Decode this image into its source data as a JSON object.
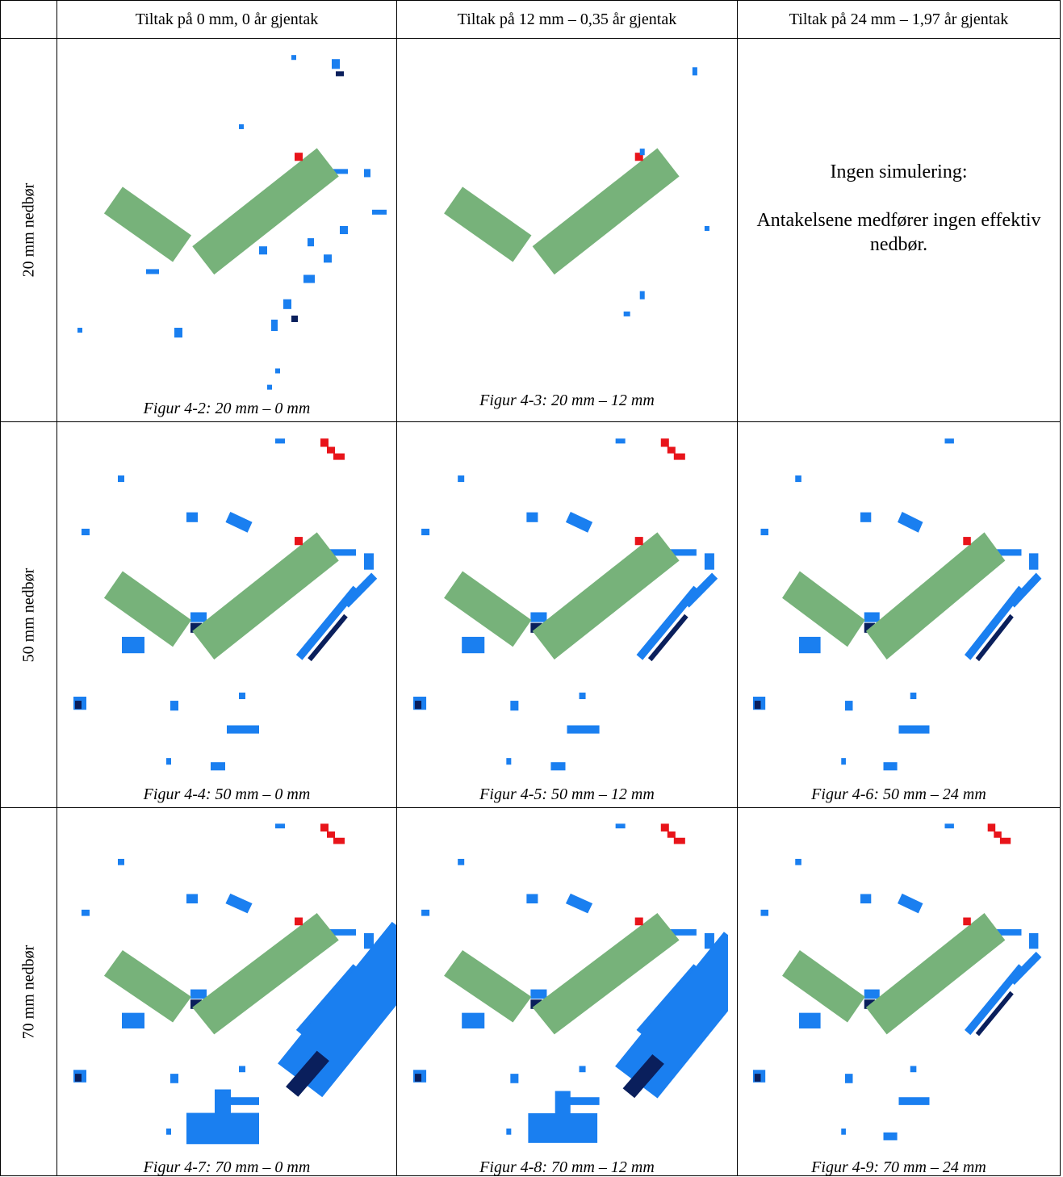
{
  "table": {
    "header": [
      "Tiltak på 0 mm, 0 år gjentak",
      "Tiltak på 12 mm – 0,35 år gjentak",
      "Tiltak på 24 mm – 1,97 år gjentak"
    ],
    "rows": [
      {
        "label": "20 mm nedbør",
        "cells": [
          {
            "caption": "Figur 4-2: 20 mm – 0 mm"
          },
          {
            "caption": "Figur 4-3: 20 mm – 12 mm"
          },
          {
            "note": [
              "Ingen simulering:",
              "Antakelsene medfører ingen effektiv nedbør."
            ]
          }
        ]
      },
      {
        "label": "50 mm nedbør",
        "cells": [
          {
            "caption": "Figur 4-4: 50 mm – 0 mm"
          },
          {
            "caption": "Figur 4-5: 50 mm – 12 mm"
          },
          {
            "caption": "Figur 4-6: 50 mm – 24 mm"
          }
        ]
      },
      {
        "label": "70 mm nedbør",
        "cells": [
          {
            "caption": "Figur 4-7: 70 mm – 0 mm"
          },
          {
            "caption": "Figur 4-8: 70 mm – 12 mm"
          },
          {
            "caption": "Figur 4-9: 70 mm – 24 mm"
          }
        ]
      }
    ]
  }
}
